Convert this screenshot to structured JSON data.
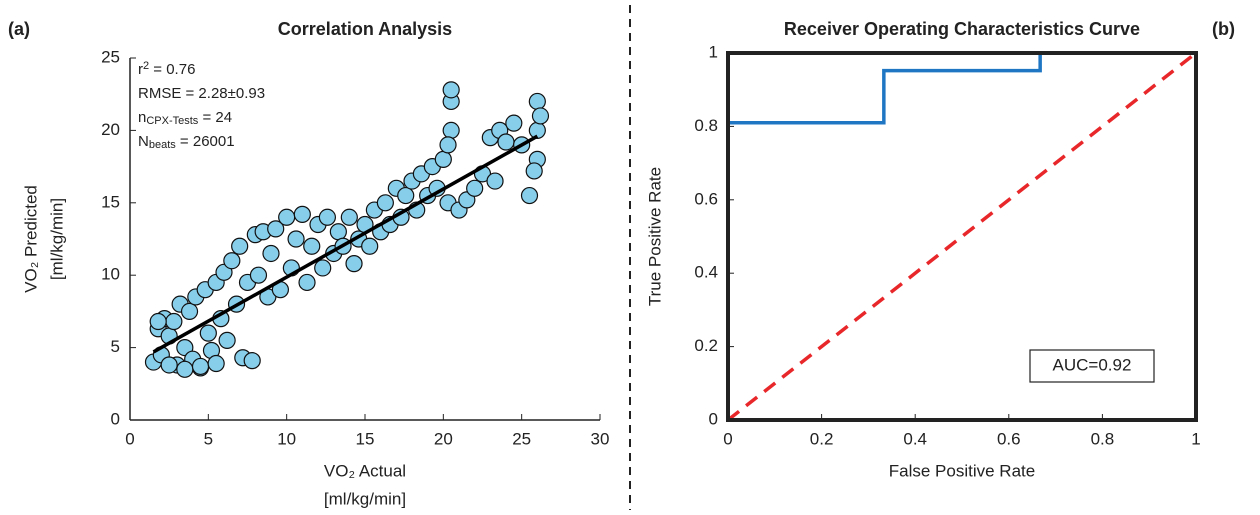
{
  "chart_data": [
    {
      "type": "scatter",
      "panel": "(a)",
      "title": "Correlation Analysis",
      "xlabel": [
        "VO₂ Actual",
        "[ml/kg/min]"
      ],
      "ylabel": [
        "VO₂ Predicted",
        "[ml/kg/min]"
      ],
      "xlim": [
        0,
        30
      ],
      "ylim": [
        0,
        25
      ],
      "xticks": [
        0,
        5,
        10,
        15,
        20,
        25,
        30
      ],
      "yticks": [
        0,
        5,
        10,
        15,
        20,
        25
      ],
      "color": "#87ceeb",
      "line_color": "#000000",
      "annotations": [
        [
          {
            "text": "r"
          },
          {
            "sup": "2"
          },
          {
            "text": " = 0.76"
          }
        ],
        [
          {
            "text": "RMSE = 2.28±0.93"
          }
        ],
        [
          {
            "text": "n"
          },
          {
            "sub": "CPX-Tests"
          },
          {
            "text": " = 24"
          }
        ],
        [
          {
            "text": "N"
          },
          {
            "sub": "beats"
          },
          {
            "text": " = 26001"
          }
        ]
      ],
      "fit_line": {
        "x": [
          1.5,
          26
        ],
        "y": [
          4.7,
          19.6
        ]
      },
      "x": [
        1.5,
        1.8,
        2,
        2.2,
        2.5,
        2.8,
        3,
        3.2,
        3.5,
        3.8,
        4,
        4.2,
        4.5,
        4.8,
        5,
        5.2,
        5.5,
        5.8,
        6,
        6.2,
        6.5,
        6.8,
        7,
        7.2,
        7.5,
        7.8,
        8,
        8.2,
        8.5,
        8.8,
        9,
        9.3,
        9.6,
        10,
        10.3,
        10.6,
        11,
        11.3,
        11.6,
        12,
        12.3,
        12.6,
        13,
        13.3,
        13.6,
        14,
        14.3,
        14.6,
        15,
        15.3,
        15.6,
        16,
        16.3,
        16.6,
        17,
        17.3,
        17.6,
        18,
        18.3,
        18.6,
        19,
        19.3,
        19.6,
        20,
        20.3,
        20.5,
        20.5,
        20.5,
        21,
        21.5,
        22,
        22.5,
        23,
        23.3,
        23.6,
        24,
        24.5,
        25,
        25.5,
        26,
        26,
        26,
        25.8,
        1.8,
        2.5,
        3.5,
        4.5,
        5.5,
        20.3,
        26.2
      ],
      "values": [
        4,
        6.3,
        4.5,
        7,
        5.8,
        6.8,
        3.8,
        8,
        5,
        7.5,
        4.2,
        8.5,
        3.6,
        9,
        6,
        4.8,
        9.5,
        7,
        10.2,
        5.5,
        11,
        8,
        12,
        4.3,
        9.5,
        4.1,
        12.8,
        10,
        13,
        8.5,
        11.5,
        13.2,
        9,
        14,
        10.5,
        12.5,
        14.2,
        9.5,
        12,
        13.5,
        10.5,
        14,
        11.5,
        13,
        12,
        14,
        10.8,
        12.5,
        13.5,
        12,
        14.5,
        13,
        15,
        13.5,
        16,
        14,
        15.5,
        16.5,
        14.5,
        17,
        15.5,
        17.5,
        16,
        18,
        15,
        20,
        22,
        22.8,
        14.5,
        15.2,
        16,
        17,
        19.5,
        16.5,
        20,
        19.2,
        20.5,
        19,
        15.5,
        22,
        20,
        18,
        17.2,
        6.8,
        3.8,
        3.5,
        3.7,
        3.9,
        19,
        21
      ]
    },
    {
      "type": "line",
      "panel": "(b)",
      "title": "Receiver Operating Characteristics Curve",
      "xlabel": "False Positive Rate",
      "ylabel": "True Positive Rate",
      "xlim": [
        0,
        1
      ],
      "ylim": [
        0,
        1
      ],
      "xticks": [
        0,
        0.2,
        0.4,
        0.6,
        0.8,
        1
      ],
      "yticks": [
        0,
        0.2,
        0.4,
        0.6,
        0.8,
        1
      ],
      "annotation": "AUC=0.92",
      "series": [
        {
          "color": "#1f77c4",
          "dash": false,
          "x": [
            0,
            0,
            0.333,
            0.333,
            0.667,
            0.667,
            1
          ],
          "values": [
            0,
            0.81,
            0.81,
            0.952,
            0.952,
            1,
            1
          ]
        },
        {
          "color": "#e8272a",
          "dash": true,
          "x": [
            0,
            1
          ],
          "values": [
            0,
            1
          ]
        }
      ]
    }
  ]
}
